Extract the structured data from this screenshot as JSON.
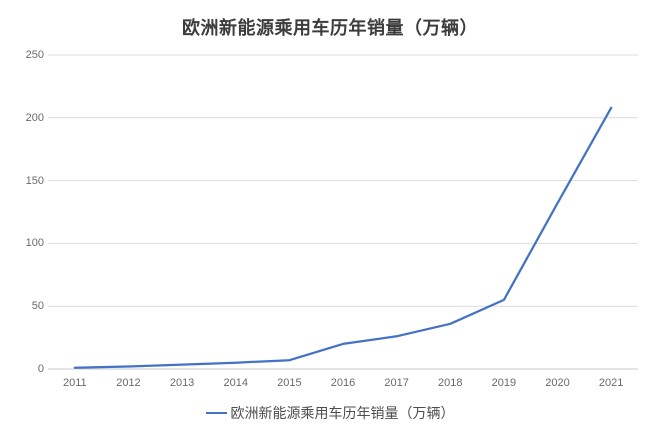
{
  "title": "欧洲新能源乘用车历年销量（万辆）",
  "legend": {
    "label": "欧洲新能源乘用车历年销量（万辆）"
  },
  "colors": {
    "line": "#4472C4",
    "gridline": "#dcdcdc",
    "axis_line": "#c8c8c8",
    "tick_label": "#6a6a6a",
    "title": "#3d3d3d"
  },
  "chart_data": {
    "type": "line",
    "title": "欧洲新能源乘用车历年销量（万辆）",
    "categories": [
      "2011",
      "2012",
      "2013",
      "2014",
      "2015",
      "2016",
      "2017",
      "2018",
      "2019",
      "2020",
      "2021"
    ],
    "series": [
      {
        "name": "欧洲新能源乘用车历年销量（万辆）",
        "values": [
          1,
          2,
          3.5,
          5,
          7,
          20,
          26,
          36,
          55,
          132,
          208
        ]
      }
    ],
    "xlabel": "",
    "ylabel": "",
    "ylim": [
      0,
      250
    ],
    "yticks": [
      0,
      50,
      100,
      150,
      200,
      250
    ],
    "grid": true,
    "legend_position": "bottom"
  }
}
